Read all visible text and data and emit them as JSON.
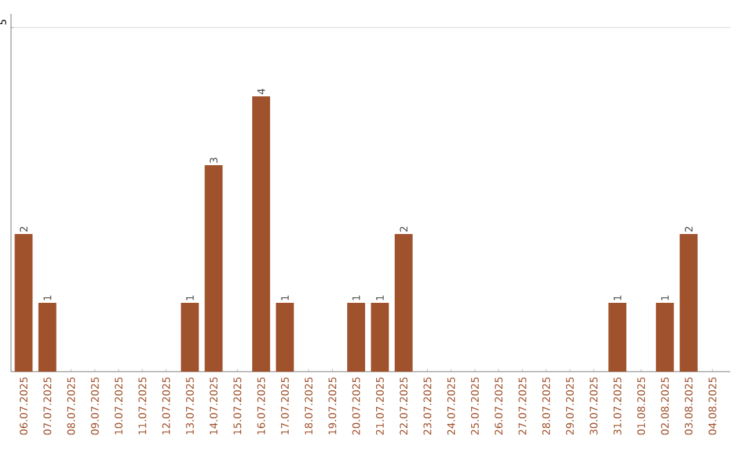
{
  "chart_data": {
    "type": "bar",
    "categories": [
      "06.07.2025",
      "07.07.2025",
      "08.07.2025",
      "09.07.2025",
      "10.07.2025",
      "11.07.2025",
      "12.07.2025",
      "13.07.2025",
      "14.07.2025",
      "15.07.2025",
      "16.07.2025",
      "17.07.2025",
      "18.07.2025",
      "19.07.2025",
      "20.07.2025",
      "21.07.2025",
      "22.07.2025",
      "23.07.2025",
      "24.07.2025",
      "25.07.2025",
      "26.07.2025",
      "27.07.2025",
      "28.07.2025",
      "29.07.2025",
      "30.07.2025",
      "31.07.2025",
      "01.08.2025",
      "02.08.2025",
      "03.08.2025",
      "04.08.2025"
    ],
    "values": [
      2,
      1,
      0,
      0,
      0,
      0,
      0,
      1,
      3,
      0,
      4,
      1,
      0,
      0,
      1,
      1,
      2,
      0,
      0,
      0,
      0,
      0,
      0,
      0,
      0,
      1,
      0,
      1,
      2,
      0
    ],
    "value_labels": [
      "2",
      "1",
      null,
      null,
      null,
      null,
      null,
      "1",
      "3",
      null,
      "4",
      "1",
      null,
      null,
      "1",
      "1",
      "2",
      null,
      null,
      null,
      null,
      null,
      null,
      null,
      null,
      "1",
      null,
      "1",
      "2",
      null
    ],
    "color": "#a0522d",
    "ylim": [
      0,
      5.2
    ],
    "yticks": [
      5
    ],
    "grid": "y"
  }
}
